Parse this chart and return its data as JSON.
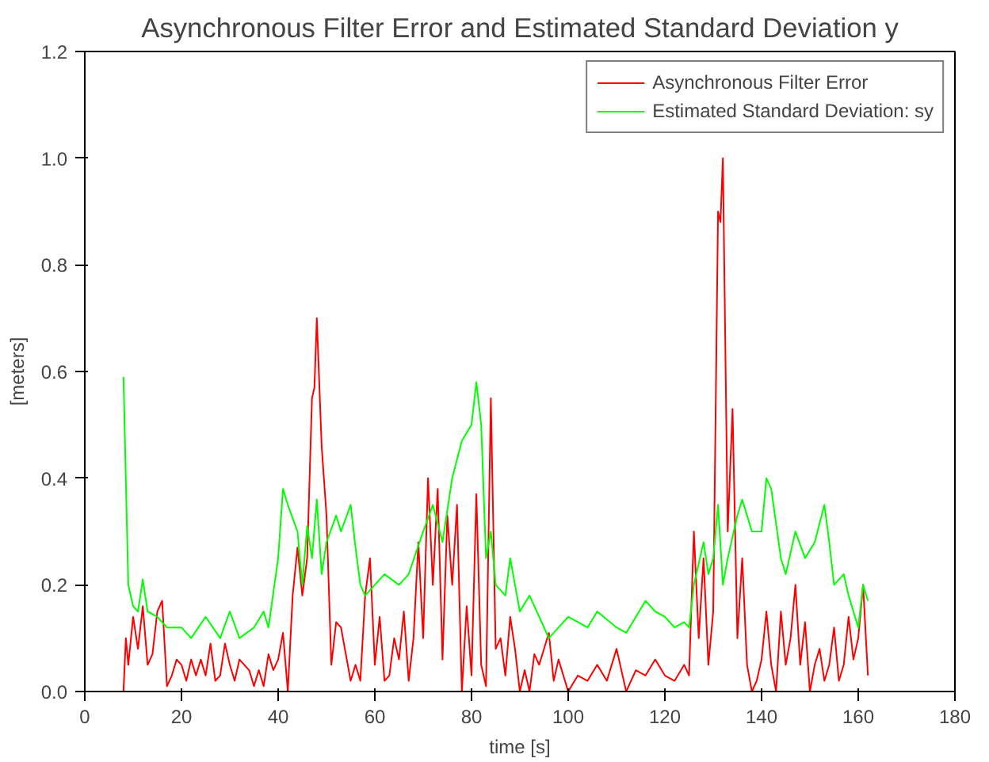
{
  "chart_data": {
    "type": "line",
    "title": "Asynchronous Filter Error and Estimated Standard Deviation y",
    "xlabel": "time [s]",
    "ylabel": "[meters]",
    "xlim": [
      0,
      180
    ],
    "xticks": [
      0,
      20,
      40,
      60,
      80,
      100,
      120,
      140,
      160,
      180
    ],
    "ylim": [
      0,
      1.2
    ],
    "yticks": [
      {
        "value": 0,
        "label": "0.0"
      },
      {
        "value": 0.2,
        "label": "0.2"
      },
      {
        "value": 0.4,
        "label": "0.4"
      },
      {
        "value": 0.6,
        "label": "0.6"
      },
      {
        "value": 0.8,
        "label": "0.8"
      },
      {
        "value": 1.0,
        "label": "1.0"
      },
      {
        "value": 1.2,
        "label": "1.2"
      }
    ],
    "grid": false,
    "legend": "top right",
    "marker": "none",
    "line_style": "solid",
    "series": [
      {
        "name": "Asynchronous Filter Error",
        "color": "#ff0000",
        "x": [
          8,
          8.5,
          9,
          10,
          11,
          12,
          13,
          14,
          15,
          16,
          17,
          18,
          19,
          20,
          21,
          22,
          23,
          24,
          25,
          26,
          27,
          28,
          29,
          30,
          31,
          32,
          34,
          35,
          36,
          37,
          38,
          39,
          40,
          41,
          42,
          43,
          44,
          45,
          46,
          47,
          47.5,
          48,
          49,
          50,
          51,
          52,
          53,
          54,
          55,
          56,
          57,
          58,
          59,
          60,
          61,
          62,
          63,
          64,
          65,
          66,
          67,
          68,
          69,
          70,
          71,
          72,
          73,
          74,
          75,
          76,
          77,
          78,
          79,
          80,
          81,
          82,
          83,
          84,
          85,
          86,
          87,
          88,
          89,
          90,
          91,
          92,
          93,
          94,
          96,
          97,
          98,
          100,
          102,
          104,
          106,
          108,
          110,
          112,
          114,
          116,
          118,
          120,
          122,
          124,
          125,
          126,
          127,
          128,
          129,
          130,
          131,
          131.5,
          132,
          133,
          134,
          135,
          136,
          137,
          138,
          139,
          140,
          141,
          142,
          143,
          144,
          145,
          146,
          147,
          148,
          149,
          150,
          151,
          152,
          153,
          154,
          155,
          156,
          157,
          158,
          159,
          160,
          161,
          162
        ],
        "values": [
          0.0,
          0.1,
          0.05,
          0.14,
          0.08,
          0.16,
          0.05,
          0.07,
          0.15,
          0.17,
          0.01,
          0.03,
          0.06,
          0.05,
          0.02,
          0.06,
          0.03,
          0.06,
          0.03,
          0.09,
          0.02,
          0.03,
          0.09,
          0.05,
          0.02,
          0.06,
          0.04,
          0.01,
          0.04,
          0.01,
          0.07,
          0.04,
          0.06,
          0.11,
          0.0,
          0.18,
          0.27,
          0.18,
          0.25,
          0.55,
          0.57,
          0.7,
          0.46,
          0.33,
          0.05,
          0.13,
          0.12,
          0.07,
          0.02,
          0.05,
          0.02,
          0.18,
          0.25,
          0.05,
          0.14,
          0.02,
          0.03,
          0.1,
          0.06,
          0.15,
          0.02,
          0.1,
          0.28,
          0.1,
          0.4,
          0.2,
          0.38,
          0.06,
          0.33,
          0.2,
          0.35,
          0.0,
          0.16,
          0.03,
          0.37,
          0.05,
          0.01,
          0.55,
          0.08,
          0.1,
          0.03,
          0.14,
          0.08,
          0.0,
          0.04,
          0.0,
          0.07,
          0.05,
          0.11,
          0.02,
          0.06,
          0.0,
          0.03,
          0.02,
          0.05,
          0.02,
          0.08,
          0.0,
          0.04,
          0.03,
          0.06,
          0.03,
          0.02,
          0.05,
          0.03,
          0.3,
          0.1,
          0.25,
          0.05,
          0.15,
          0.9,
          0.88,
          1.0,
          0.3,
          0.53,
          0.1,
          0.25,
          0.05,
          0.0,
          0.02,
          0.06,
          0.15,
          0.05,
          0.0,
          0.15,
          0.05,
          0.1,
          0.2,
          0.05,
          0.13,
          0.0,
          0.05,
          0.08,
          0.02,
          0.05,
          0.12,
          0.02,
          0.05,
          0.14,
          0.06,
          0.1,
          0.2,
          0.03
        ]
      },
      {
        "name": "Estimated Standard Deviation: sy",
        "color": "#00ff00",
        "x": [
          8,
          9,
          10,
          11,
          12,
          13,
          15,
          17,
          20,
          22,
          25,
          28,
          30,
          32,
          35,
          37,
          38,
          40,
          41,
          42,
          44,
          45,
          46,
          47,
          48,
          49,
          50,
          52,
          53,
          55,
          56,
          57,
          58,
          60,
          62,
          65,
          67,
          70,
          72,
          74,
          76,
          78,
          80,
          81,
          82,
          83,
          84,
          85,
          87,
          88,
          90,
          92,
          94,
          96,
          98,
          100,
          102,
          104,
          106,
          110,
          112,
          114,
          116,
          118,
          120,
          122,
          124,
          125,
          126,
          128,
          129,
          130,
          131,
          132,
          133,
          135,
          136,
          138,
          140,
          141,
          142,
          144,
          145,
          147,
          149,
          151,
          153,
          154,
          155,
          157,
          158,
          160,
          161,
          162
        ],
        "values": [
          0.59,
          0.2,
          0.16,
          0.15,
          0.21,
          0.15,
          0.14,
          0.12,
          0.12,
          0.1,
          0.14,
          0.1,
          0.15,
          0.1,
          0.12,
          0.15,
          0.12,
          0.25,
          0.38,
          0.35,
          0.3,
          0.2,
          0.31,
          0.25,
          0.36,
          0.22,
          0.28,
          0.33,
          0.3,
          0.35,
          0.27,
          0.2,
          0.18,
          0.2,
          0.22,
          0.2,
          0.22,
          0.3,
          0.35,
          0.28,
          0.4,
          0.47,
          0.5,
          0.58,
          0.5,
          0.25,
          0.3,
          0.2,
          0.18,
          0.25,
          0.15,
          0.18,
          0.14,
          0.1,
          0.12,
          0.14,
          0.13,
          0.12,
          0.15,
          0.12,
          0.11,
          0.14,
          0.17,
          0.15,
          0.14,
          0.12,
          0.13,
          0.12,
          0.2,
          0.28,
          0.22,
          0.25,
          0.35,
          0.2,
          0.25,
          0.33,
          0.36,
          0.3,
          0.3,
          0.4,
          0.38,
          0.25,
          0.22,
          0.3,
          0.25,
          0.28,
          0.35,
          0.28,
          0.2,
          0.22,
          0.18,
          0.12,
          0.2,
          0.17
        ]
      }
    ]
  }
}
